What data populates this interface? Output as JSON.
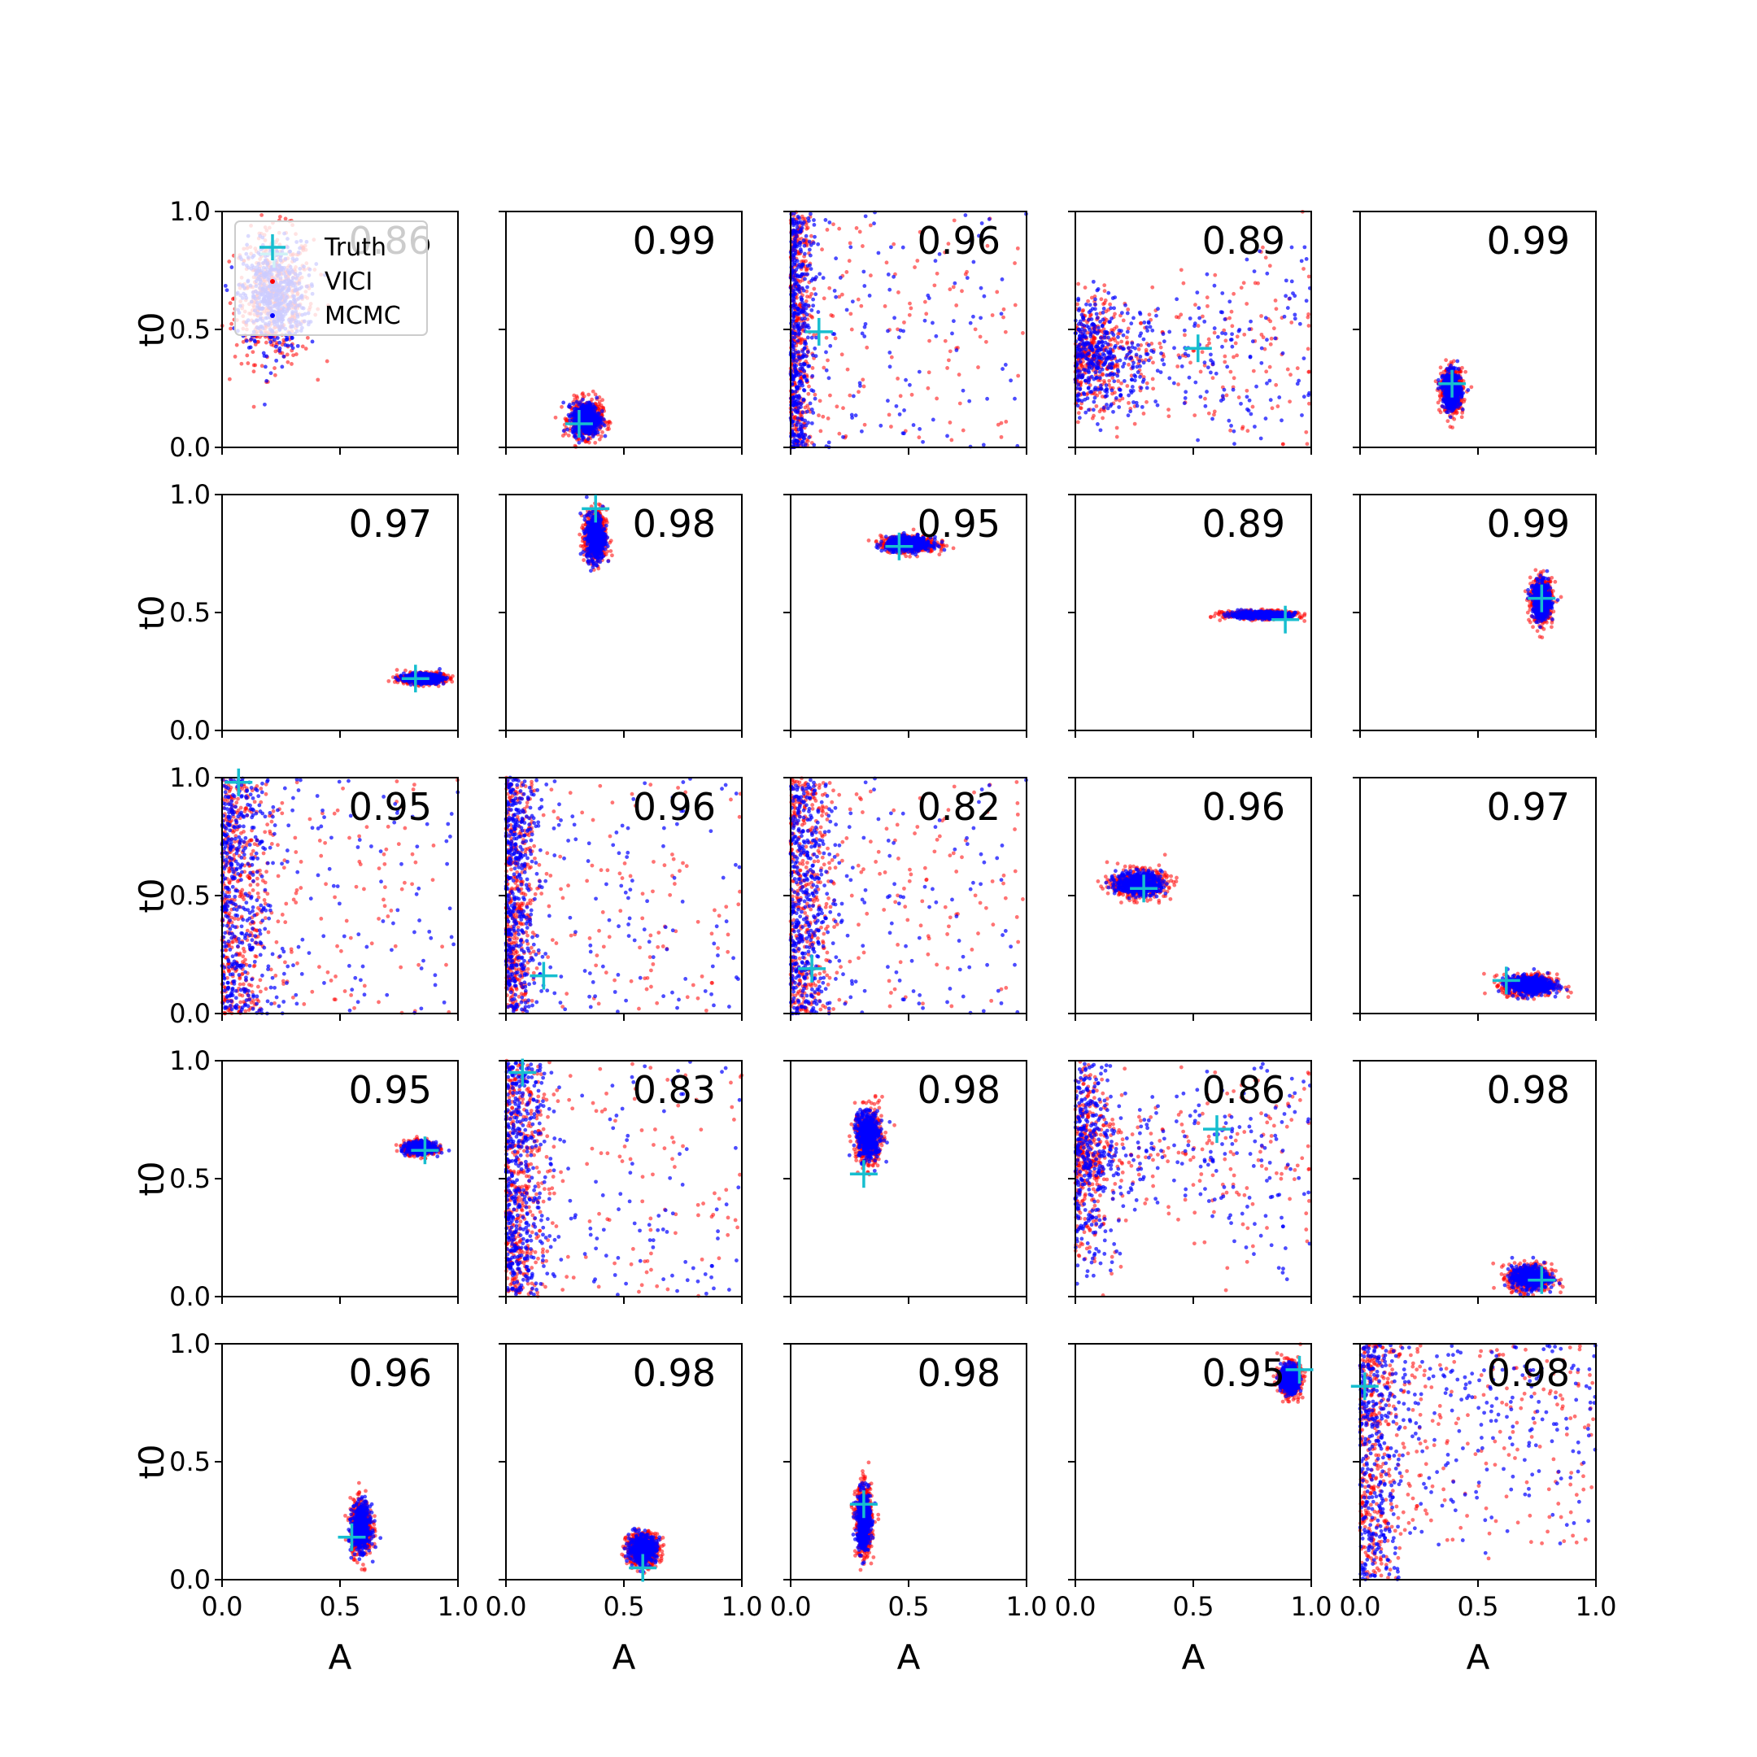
{
  "chart_data": {
    "type": "scatter",
    "title": "",
    "rows": 5,
    "cols": 5,
    "xlabel": "A",
    "ylabel": "t0",
    "xlim": [
      0.0,
      1.0
    ],
    "ylim": [
      0.0,
      1.0
    ],
    "x_ticks": [
      "0.0",
      "0.5",
      "1.0"
    ],
    "y_ticks": [
      "0.0",
      "0.5",
      "1.0"
    ],
    "legend": {
      "location": "upper-left of first panel",
      "entries": [
        {
          "label": "Truth",
          "marker": "plus",
          "color": "#17becf"
        },
        {
          "label": "VICI",
          "marker": "dot",
          "color": "#ff0000"
        },
        {
          "label": "MCMC",
          "marker": "dot",
          "color": "#0000ff"
        }
      ]
    },
    "colors": {
      "vici": "#ff0000",
      "mcmc": "#0000ff",
      "truth": "#17becf"
    },
    "panels": [
      {
        "score": "0.86",
        "truth": [
          0.22,
          0.82
        ],
        "shape": "wide",
        "center": [
          0.22,
          0.64
        ],
        "spread": [
          0.12,
          0.2
        ]
      },
      {
        "score": "0.99",
        "truth": [
          0.31,
          0.1
        ],
        "shape": "blob",
        "center": [
          0.34,
          0.12
        ],
        "spread": [
          0.06,
          0.07
        ]
      },
      {
        "score": "0.96",
        "truth": [
          0.12,
          0.49
        ],
        "shape": "edge_spike",
        "center": [
          0.02,
          0.5
        ],
        "spread": [
          0.04,
          0.5
        ]
      },
      {
        "score": "0.89",
        "truth": [
          0.52,
          0.42
        ],
        "shape": "fan",
        "center": [
          0.12,
          0.38
        ],
        "spread": [
          0.15,
          0.2
        ]
      },
      {
        "score": "0.99",
        "truth": [
          0.39,
          0.27
        ],
        "shape": "blob",
        "center": [
          0.39,
          0.24
        ],
        "spread": [
          0.04,
          0.08
        ]
      },
      {
        "score": "0.97",
        "truth": [
          0.82,
          0.22
        ],
        "shape": "blob",
        "center": [
          0.85,
          0.22
        ],
        "spread": [
          0.08,
          0.02
        ]
      },
      {
        "score": "0.98",
        "truth": [
          0.38,
          0.94
        ],
        "shape": "blob",
        "center": [
          0.38,
          0.82
        ],
        "spread": [
          0.04,
          0.1
        ]
      },
      {
        "score": "0.95",
        "truth": [
          0.46,
          0.78
        ],
        "shape": "blob",
        "center": [
          0.5,
          0.79
        ],
        "spread": [
          0.1,
          0.03
        ]
      },
      {
        "score": "0.89",
        "truth": [
          0.89,
          0.47
        ],
        "shape": "blob",
        "center": [
          0.78,
          0.49
        ],
        "spread": [
          0.13,
          0.015
        ]
      },
      {
        "score": "0.99",
        "truth": [
          0.77,
          0.56
        ],
        "shape": "blob",
        "center": [
          0.77,
          0.55
        ],
        "spread": [
          0.04,
          0.08
        ]
      },
      {
        "score": "0.95",
        "truth": [
          0.07,
          0.98
        ],
        "shape": "edge_spike",
        "center": [
          0.05,
          0.5
        ],
        "spread": [
          0.1,
          0.5
        ]
      },
      {
        "score": "0.96",
        "truth": [
          0.16,
          0.16
        ],
        "shape": "edge_spike",
        "center": [
          0.03,
          0.5
        ],
        "spread": [
          0.06,
          0.5
        ]
      },
      {
        "score": "0.82",
        "truth": [
          0.09,
          0.19
        ],
        "shape": "edge_spike",
        "center": [
          0.03,
          0.5
        ],
        "spread": [
          0.08,
          0.5
        ]
      },
      {
        "score": "0.96",
        "truth": [
          0.29,
          0.53
        ],
        "shape": "blob",
        "center": [
          0.27,
          0.55
        ],
        "spread": [
          0.1,
          0.05
        ]
      },
      {
        "score": "0.97",
        "truth": [
          0.62,
          0.14
        ],
        "shape": "blob",
        "center": [
          0.72,
          0.12
        ],
        "spread": [
          0.1,
          0.04
        ]
      },
      {
        "score": "0.95",
        "truth": [
          0.86,
          0.62
        ],
        "shape": "blob",
        "center": [
          0.84,
          0.63
        ],
        "spread": [
          0.06,
          0.025
        ]
      },
      {
        "score": "0.83",
        "truth": [
          0.07,
          0.95
        ],
        "shape": "edge_spike",
        "center": [
          0.04,
          0.5
        ],
        "spread": [
          0.08,
          0.5
        ]
      },
      {
        "score": "0.98",
        "truth": [
          0.31,
          0.52
        ],
        "shape": "blob",
        "center": [
          0.33,
          0.68
        ],
        "spread": [
          0.05,
          0.1
        ]
      },
      {
        "score": "0.86",
        "truth": [
          0.6,
          0.71
        ],
        "shape": "fan",
        "center": [
          0.06,
          0.6
        ],
        "spread": [
          0.1,
          0.4
        ]
      },
      {
        "score": "0.98",
        "truth": [
          0.77,
          0.07
        ],
        "shape": "blob",
        "center": [
          0.72,
          0.08
        ],
        "spread": [
          0.08,
          0.05
        ]
      },
      {
        "score": "0.96",
        "truth": [
          0.55,
          0.18
        ],
        "shape": "blob",
        "center": [
          0.59,
          0.22
        ],
        "spread": [
          0.04,
          0.1
        ]
      },
      {
        "score": "0.98",
        "truth": [
          0.58,
          0.05
        ],
        "shape": "blob",
        "center": [
          0.58,
          0.13
        ],
        "spread": [
          0.06,
          0.06
        ]
      },
      {
        "score": "0.98",
        "truth": [
          0.31,
          0.32
        ],
        "shape": "blob",
        "center": [
          0.31,
          0.25
        ],
        "spread": [
          0.03,
          0.13
        ]
      },
      {
        "score": "0.95",
        "truth": [
          0.95,
          0.89
        ],
        "shape": "blob",
        "center": [
          0.91,
          0.85
        ],
        "spread": [
          0.04,
          0.06
        ]
      },
      {
        "score": "0.98",
        "truth": [
          0.02,
          0.82
        ],
        "shape": "uniform_edge",
        "center": [
          0.05,
          0.5
        ],
        "spread": [
          0.08,
          0.5
        ]
      }
    ]
  }
}
